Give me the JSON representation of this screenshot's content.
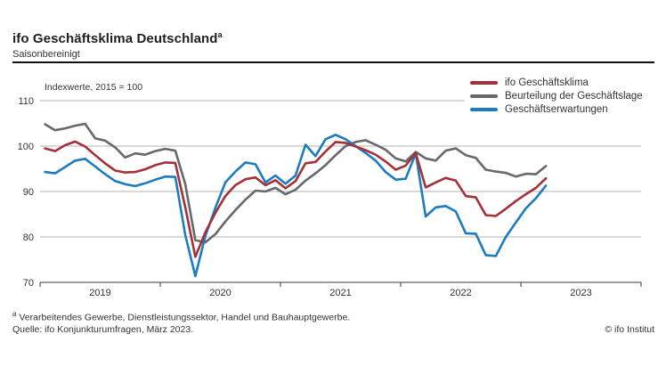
{
  "header": {
    "title": "ifo Geschäftsklima Deutschland",
    "title_sup": "a",
    "subtitle": "Saisonbereinigt"
  },
  "axis_note": "Indexwerte, 2015 = 100",
  "legend": [
    {
      "label": "ifo Geschäftsklima",
      "color": "#a63038"
    },
    {
      "label": "Beurteilung der Geschäftslage",
      "color": "#65696c"
    },
    {
      "label": "Geschäftserwartungen",
      "color": "#1c7cc0"
    }
  ],
  "footer": {
    "footnote_sup": "a",
    "footnote": "Verarbeitendes Gewerbe, Dienstleistungssektor, Handel und Bauhauptgewerbe.",
    "source": "Quelle: ifo Konjunkturumfragen, März 2023.",
    "copyright": "© ifo Institut"
  },
  "chart_data": {
    "type": "line",
    "title": "ifo Geschäftsklima Deutschland, saisonbereinigt",
    "ylabel": "Indexwerte, 2015 = 100",
    "ylim": [
      70,
      110
    ],
    "yticks": [
      110,
      100,
      90,
      80,
      70
    ],
    "grid": true,
    "legend_position": "top-right",
    "x_start": "2019-01",
    "x_end": "2023-03",
    "x_axis_years": [
      "2019",
      "2020",
      "2021",
      "2022",
      "2023"
    ],
    "months_per_year": 12,
    "series": [
      {
        "name": "Beurteilung der Geschäftslage",
        "color": "#65696c",
        "values": [
          104.8,
          103.5,
          103.9,
          104.5,
          104.9,
          101.7,
          101.2,
          99.7,
          97.5,
          98.4,
          98.1,
          98.9,
          99.4,
          99.0,
          91.6,
          79.3,
          78.8,
          80.6,
          83.4,
          85.9,
          88.2,
          90.2,
          90.0,
          90.8,
          89.4,
          90.4,
          92.4,
          94.0,
          95.8,
          98.0,
          100.0,
          100.9,
          101.3,
          100.3,
          99.2,
          97.3,
          96.6,
          98.7,
          97.3,
          96.8,
          99.0,
          99.5,
          98.0,
          97.4,
          94.8,
          94.4,
          94.1,
          93.3,
          93.9,
          93.8,
          95.6
        ]
      },
      {
        "name": "Geschäftserwartungen",
        "color": "#1c7cc0",
        "values": [
          94.3,
          94.0,
          95.4,
          96.8,
          97.2,
          95.5,
          93.8,
          92.3,
          91.6,
          91.2,
          91.8,
          92.6,
          93.3,
          93.2,
          80.4,
          71.4,
          80.2,
          86.4,
          92.0,
          94.4,
          96.4,
          96.0,
          92.0,
          93.5,
          91.7,
          93.5,
          100.3,
          97.8,
          101.5,
          102.5,
          101.5,
          100.0,
          98.5,
          96.8,
          94.3,
          92.6,
          92.8,
          98.4,
          84.5,
          86.5,
          86.8,
          85.6,
          80.8,
          80.7,
          76.0,
          75.8,
          80.0,
          83.2,
          86.3,
          88.5,
          91.3
        ]
      },
      {
        "name": "ifo Geschäftsklima",
        "color": "#a63038",
        "values": [
          99.5,
          98.9,
          100.2,
          101.0,
          99.9,
          98.0,
          96.2,
          94.6,
          94.2,
          94.3,
          94.9,
          95.8,
          96.4,
          96.3,
          86.5,
          75.6,
          81.0,
          85.3,
          89.0,
          91.4,
          92.7,
          93.1,
          91.4,
          92.5,
          90.7,
          92.3,
          96.2,
          96.5,
          98.8,
          100.9,
          100.7,
          99.9,
          99.1,
          98.1,
          96.6,
          94.8,
          95.7,
          98.5,
          90.9,
          92.0,
          93.0,
          92.4,
          89.0,
          88.7,
          84.8,
          84.6,
          86.2,
          87.9,
          89.4,
          90.8,
          92.9
        ]
      }
    ]
  }
}
